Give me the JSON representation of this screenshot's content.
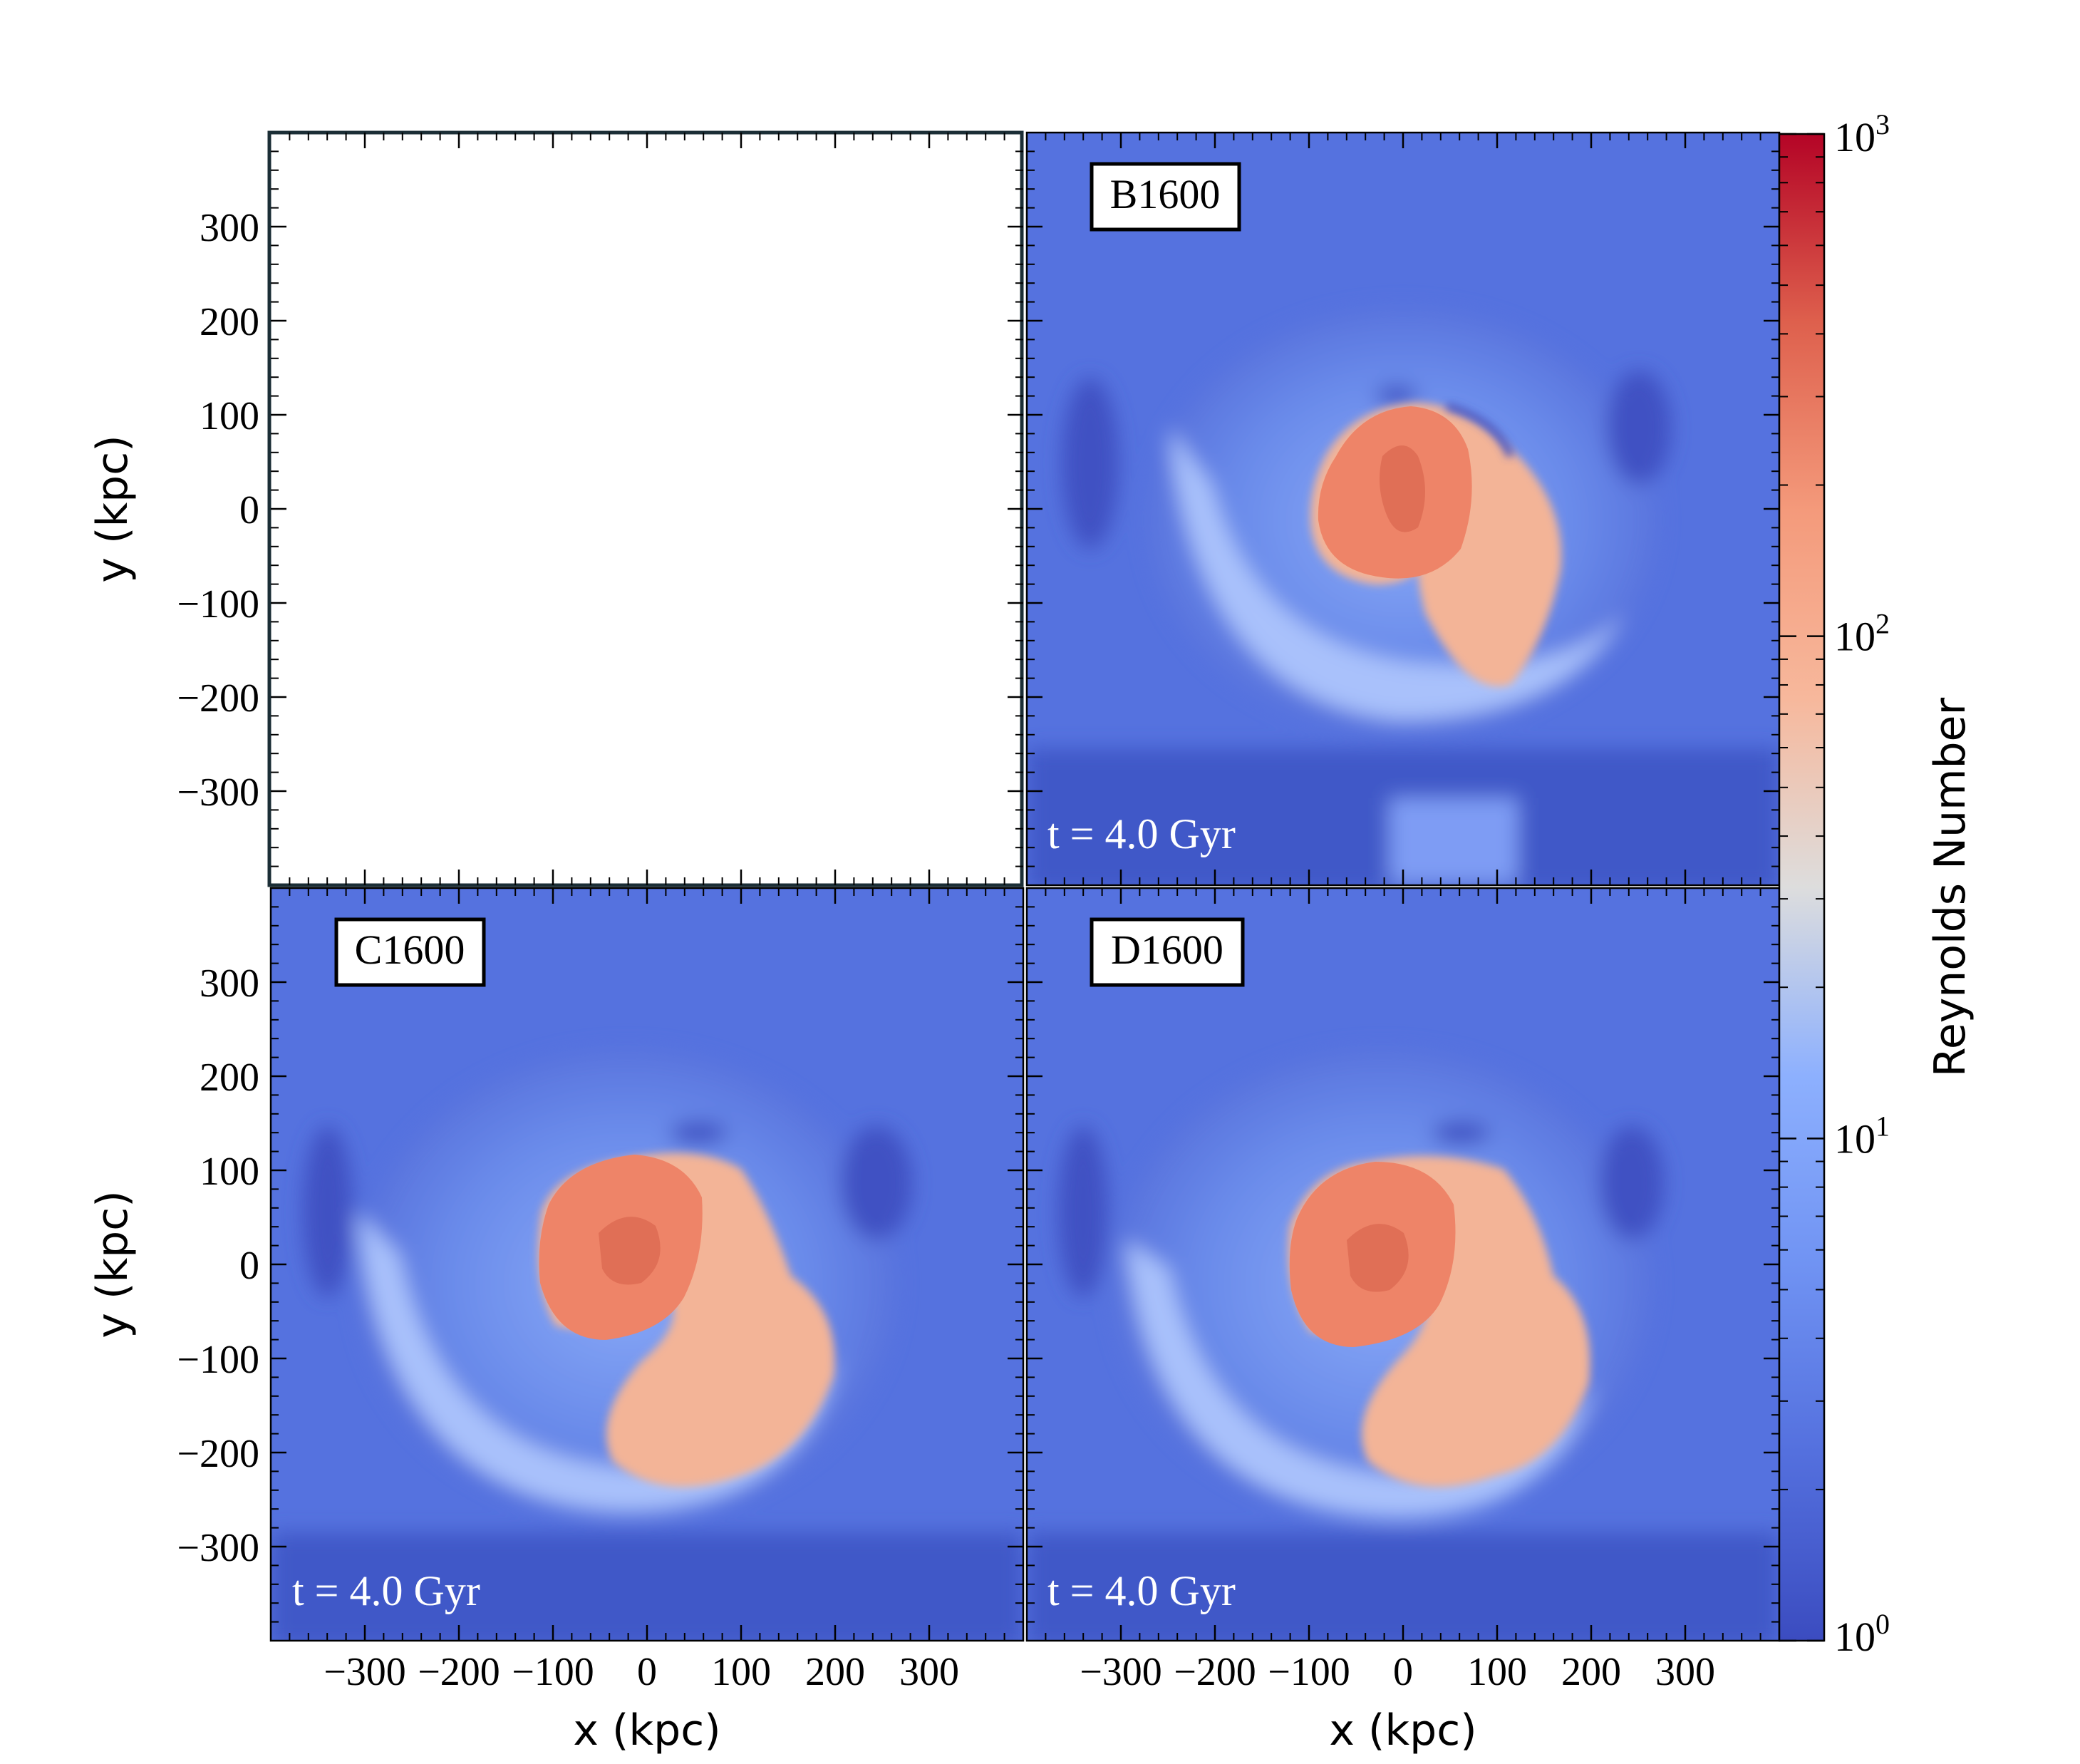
{
  "chart_data": {
    "type": "heatmap",
    "colorbar": {
      "label": "Reynolds Number",
      "scale": "log",
      "range": [
        1,
        1000
      ],
      "tick_labels": [
        {
          "base": "10",
          "exp": "0",
          "value": 1
        },
        {
          "base": "10",
          "exp": "1",
          "value": 10
        },
        {
          "base": "10",
          "exp": "2",
          "value": 100
        },
        {
          "base": "10",
          "exp": "3",
          "value": 1000
        }
      ],
      "colormap": "coolwarm"
    },
    "axes": {
      "xlabel": "x  (kpc)",
      "ylabel": "y  (kpc)",
      "xlim": [
        -400,
        400
      ],
      "ylim": [
        -400,
        400
      ],
      "ticks": [
        -300,
        -200,
        -100,
        0,
        100,
        200,
        300
      ],
      "tick_labels": [
        "−300",
        "−200",
        "−100",
        "0",
        "100",
        "200",
        "300"
      ]
    },
    "panels": [
      {
        "id": "top-left",
        "label": "",
        "time": "",
        "blank": true
      },
      {
        "id": "top-right",
        "label": "B1600",
        "time": "t = 4.0 Gyr",
        "blank": false
      },
      {
        "id": "bottom-left",
        "label": "C1600",
        "time": "t = 4.0 Gyr",
        "blank": false
      },
      {
        "id": "bottom-right",
        "label": "D1600",
        "time": "t = 4.0 Gyr",
        "blank": false
      }
    ]
  },
  "colors": {
    "cmap_low": "#3b4cc0",
    "cmap_mid": "#dddddd",
    "cmap_high": "#b40426",
    "background_field": "#5572df",
    "core": "#ee8468",
    "tail": "#f2b295",
    "void": "#3f51c3"
  }
}
